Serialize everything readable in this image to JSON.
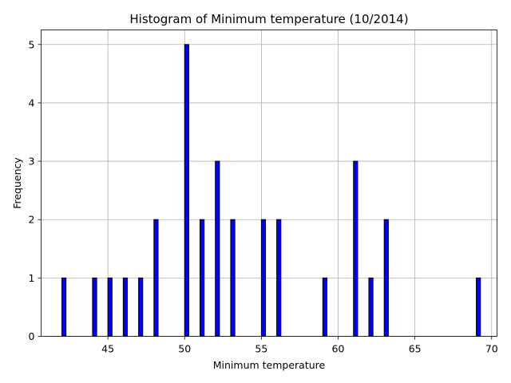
{
  "chart_data": {
    "type": "bar",
    "title": "Histogram of Minimum temperature (10/2014)",
    "xlabel": "Minimum temperature",
    "ylabel": "Frequency",
    "xlim": [
      40.65,
      70.35
    ],
    "ylim": [
      0,
      5.25
    ],
    "xticks": [
      45,
      50,
      55,
      60,
      65,
      70
    ],
    "yticks": [
      0,
      1,
      2,
      3,
      4,
      5
    ],
    "grid": true,
    "bar_color": "#0000ff",
    "edge_color": "#000000",
    "bin_width": 0.27,
    "x": [
      42,
      44,
      45,
      46,
      47,
      48,
      50,
      51,
      52,
      53,
      55,
      56,
      59,
      61,
      62,
      63,
      69
    ],
    "values": [
      1,
      1,
      1,
      1,
      1,
      2,
      5,
      2,
      3,
      2,
      2,
      2,
      1,
      3,
      1,
      2,
      1
    ]
  }
}
